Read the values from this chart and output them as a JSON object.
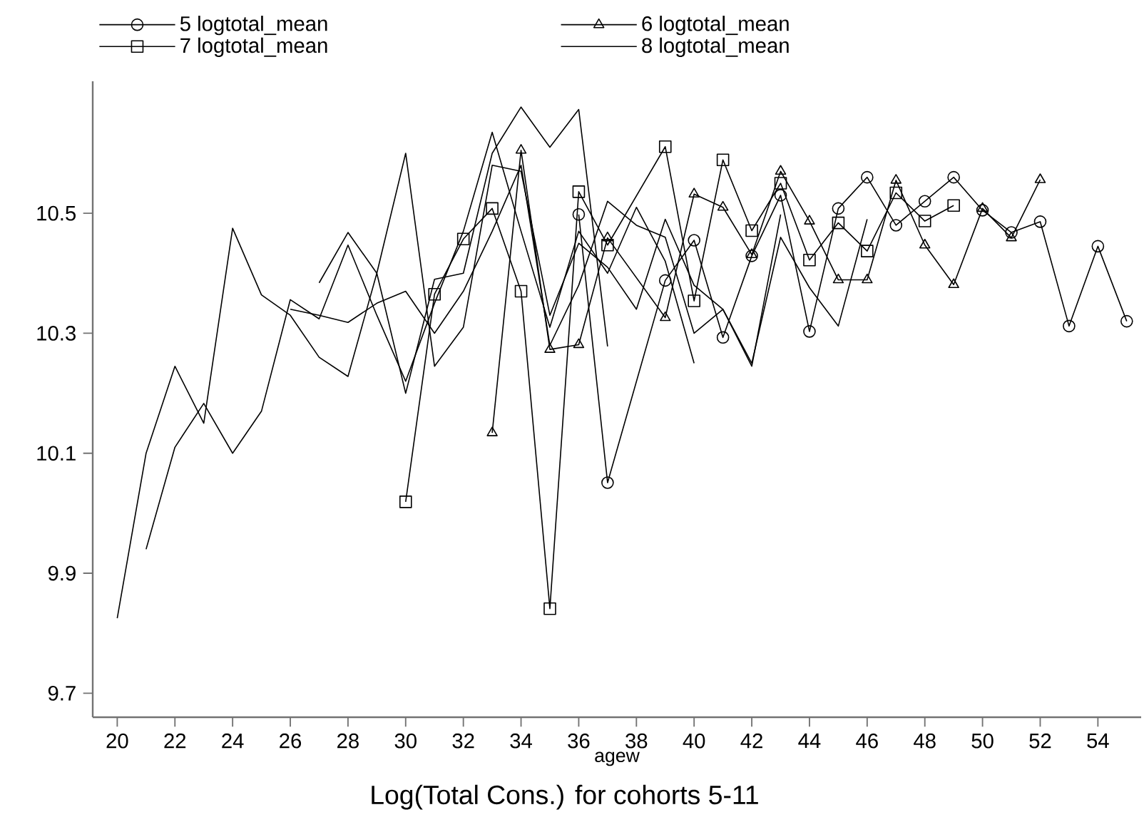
{
  "chart_data": {
    "type": "line",
    "title": "Log(Total Cons.) for  cohorts 5-11",
    "xlabel": "agew",
    "xlim": [
      19.15,
      55.5
    ],
    "xticks": [
      20,
      22,
      24,
      26,
      28,
      30,
      32,
      34,
      36,
      38,
      40,
      42,
      44,
      46,
      48,
      50,
      52,
      54
    ],
    "ylim": [
      9.66,
      10.72
    ],
    "yticks": [
      9.7,
      9.9,
      10.1,
      10.3,
      10.5
    ],
    "grid": false,
    "legend": "top",
    "series": [
      {
        "name": "5 logtotal_mean",
        "color": "#000000",
        "marker": "circle",
        "x": [
          36,
          37,
          39,
          40,
          41,
          42,
          43,
          44,
          45,
          46,
          47,
          48,
          49,
          50,
          51,
          52,
          53,
          54,
          55
        ],
        "values": [
          10.498,
          10.051,
          10.388,
          10.455,
          10.293,
          10.429,
          10.53,
          10.303,
          10.508,
          10.56,
          10.48,
          10.52,
          10.56,
          10.505,
          10.468,
          10.486,
          10.312,
          10.445,
          10.32
        ]
      },
      {
        "name": "6 logtotal_mean",
        "color": "#000000",
        "marker": "triangle",
        "x": [
          33,
          34,
          35,
          36,
          37,
          39,
          40,
          41,
          42,
          43,
          44,
          45,
          46,
          47,
          48,
          49,
          50,
          51,
          52
        ],
        "values": [
          10.134,
          10.605,
          10.273,
          10.281,
          10.459,
          10.326,
          10.532,
          10.51,
          10.431,
          10.57,
          10.487,
          10.389,
          10.389,
          10.555,
          10.447,
          10.381,
          10.508,
          10.459,
          10.556
        ]
      },
      {
        "name": "7 logtotal_mean",
        "color": "#000000",
        "marker": "square",
        "x": [
          30,
          31,
          32,
          33,
          34,
          35,
          36,
          37,
          39,
          40,
          41,
          42,
          43,
          44,
          45,
          46,
          47,
          48,
          49
        ],
        "values": [
          10.019,
          10.365,
          10.457,
          10.508,
          10.37,
          9.841,
          10.536,
          10.447,
          10.611,
          10.354,
          10.589,
          10.471,
          10.55,
          10.422,
          10.484,
          10.437,
          10.534,
          10.487,
          10.513
        ]
      },
      {
        "name": "8 logtotal_mean",
        "color": "#000000",
        "marker": "none",
        "x": [
          26,
          27,
          28,
          29,
          30,
          31,
          32,
          33,
          34,
          35,
          36,
          37,
          38,
          39,
          40,
          41,
          42,
          43,
          44,
          45,
          46
        ],
        "values": [
          10.34,
          10.33,
          10.318,
          10.35,
          10.37,
          10.3,
          10.37,
          10.47,
          10.58,
          10.28,
          10.38,
          10.52,
          10.48,
          10.46,
          10.3,
          10.34,
          10.25,
          10.46,
          10.376,
          10.312,
          10.49
        ]
      },
      {
        "color": "#000000",
        "marker": "none",
        "x": [
          27,
          28,
          29,
          30,
          31,
          32,
          33,
          34,
          35,
          36,
          37,
          38,
          39,
          40,
          41,
          42,
          43
        ],
        "values": [
          10.384,
          10.468,
          10.4,
          10.6,
          10.245,
          10.31,
          10.58,
          10.57,
          10.33,
          10.45,
          10.41,
          10.34,
          10.49,
          10.38,
          10.34,
          10.245,
          10.498
        ]
      },
      {
        "color": "#000000",
        "marker": "none",
        "x": [
          21,
          22,
          23,
          24,
          25,
          26,
          27,
          28,
          29,
          30,
          31,
          32,
          33,
          34,
          35,
          36,
          37,
          38,
          39,
          40
        ],
        "values": [
          9.94,
          10.11,
          10.183,
          10.1,
          10.17,
          10.356,
          10.324,
          10.447,
          10.33,
          10.22,
          10.35,
          10.47,
          10.635,
          10.47,
          10.31,
          10.47,
          10.4,
          10.51,
          10.42,
          10.25
        ]
      },
      {
        "color": "#000000",
        "marker": "none",
        "x": [
          20,
          21,
          22,
          23,
          24,
          25,
          26,
          27,
          28,
          29,
          30,
          31,
          32,
          33,
          34,
          35,
          36,
          37
        ],
        "values": [
          9.825,
          10.1,
          10.245,
          10.15,
          10.475,
          10.364,
          10.33,
          10.26,
          10.228,
          10.4,
          10.2,
          10.39,
          10.4,
          10.6,
          10.677,
          10.61,
          10.673,
          10.278
        ]
      }
    ]
  }
}
